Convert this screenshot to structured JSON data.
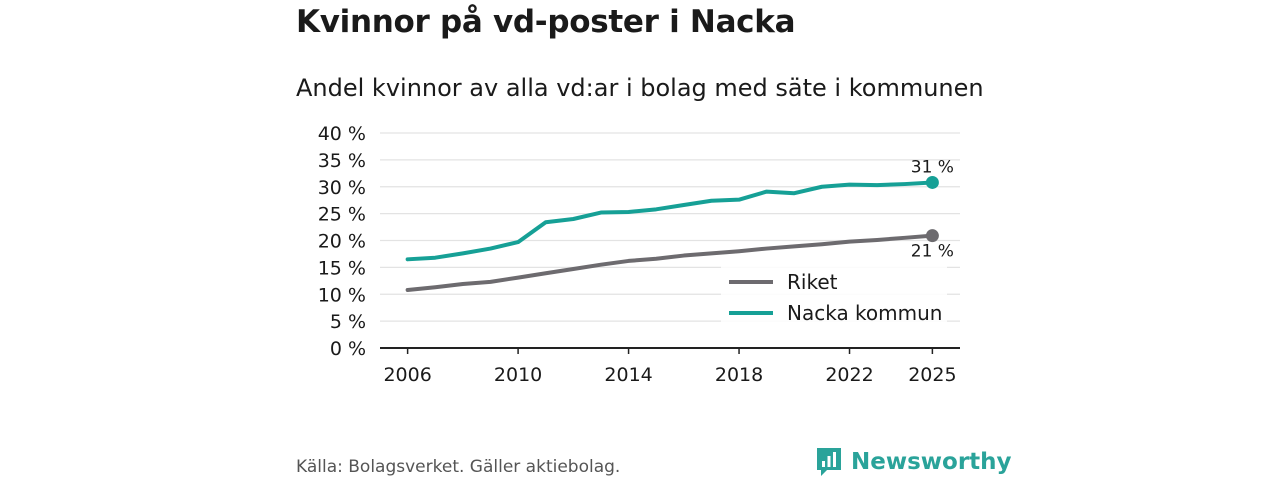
{
  "title": "Kvinnor på vd-poster i Nacka",
  "subtitle": "Andel kvinnor av alla vd:ar i bolag med säte i kommunen",
  "source": "Källa: Bolagsverket. Gäller aktiebolag.",
  "brand": "Newsworthy",
  "colors": {
    "nacka": "#16a096",
    "riket": "#6d6b6f",
    "grid": "#e3e3e3",
    "axis": "#222222"
  },
  "chart_data": {
    "type": "line",
    "ylim": [
      0,
      40
    ],
    "yticks": [
      "0 %",
      "5 %",
      "10 %",
      "15 %",
      "20 %",
      "25 %",
      "30 %",
      "35 %",
      "40 %"
    ],
    "xticks": [
      2006,
      2010,
      2014,
      2018,
      2022,
      2025
    ],
    "x": [
      2006,
      2007,
      2008,
      2009,
      2010,
      2011,
      2012,
      2013,
      2014,
      2015,
      2016,
      2017,
      2018,
      2019,
      2020,
      2021,
      2022,
      2023,
      2024,
      2025
    ],
    "series": [
      {
        "name": "Riket",
        "values": [
          10.8,
          11.3,
          11.9,
          12.3,
          13.1,
          13.9,
          14.7,
          15.5,
          16.2,
          16.6,
          17.2,
          17.6,
          18.0,
          18.5,
          18.9,
          19.3,
          19.8,
          20.1,
          20.5,
          20.9
        ],
        "end_label": "21 %"
      },
      {
        "name": "Nacka kommun",
        "values": [
          16.5,
          16.8,
          17.6,
          18.5,
          19.7,
          23.4,
          24.0,
          25.2,
          25.3,
          25.8,
          26.6,
          27.4,
          27.6,
          29.1,
          28.8,
          30.0,
          30.4,
          30.3,
          30.5,
          30.8
        ],
        "end_label": "31 %"
      }
    ],
    "legend": [
      "Riket",
      "Nacka kommun"
    ],
    "legend_position": "bottom-right",
    "grid": true
  }
}
